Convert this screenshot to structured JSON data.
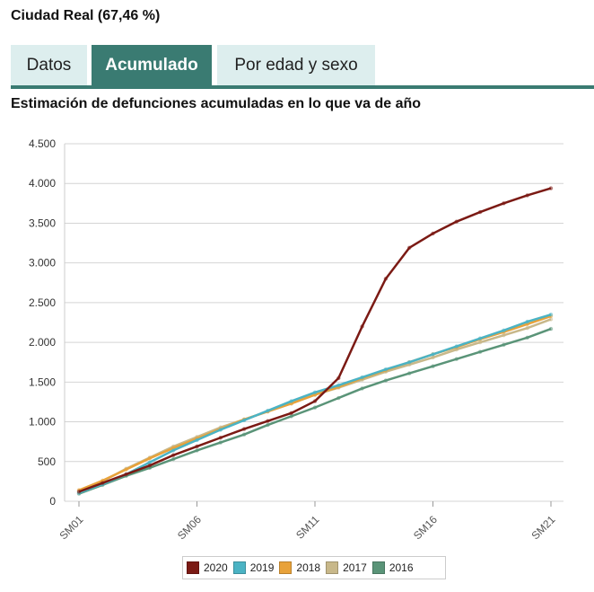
{
  "region": {
    "title": "Ciudad Real (67,46 %)"
  },
  "tabs": [
    {
      "label": "Datos",
      "active": false
    },
    {
      "label": "Acumulado",
      "active": true
    },
    {
      "label": "Por edad y sexo",
      "active": false
    }
  ],
  "colors": {
    "accent": "#3a7b72",
    "tab_bg": "#ddeeee"
  },
  "chart_data": {
    "type": "line",
    "title": "Estimación de defunciones acumuladas en lo que va de año",
    "xlabel": "",
    "ylabel": "",
    "x": [
      "SM01",
      "SM02",
      "SM03",
      "SM04",
      "SM05",
      "SM06",
      "SM07",
      "SM08",
      "SM09",
      "SM10",
      "SM11",
      "SM12",
      "SM13",
      "SM14",
      "SM15",
      "SM16",
      "SM17",
      "SM18",
      "SM19",
      "SM20",
      "SM21"
    ],
    "x_tick_labels": [
      "SM01",
      "SM06",
      "SM11",
      "SM16",
      "SM21"
    ],
    "ylim": [
      0,
      4500
    ],
    "y_ticks": [
      0,
      500,
      1000,
      1500,
      2000,
      2500,
      3000,
      3500,
      4000,
      4500
    ],
    "y_tick_labels": [
      "0",
      "500",
      "1.000",
      "1.500",
      "2.000",
      "2.500",
      "3.000",
      "3.500",
      "4.000",
      "4.500"
    ],
    "grid": true,
    "legend_position": "bottom",
    "series": [
      {
        "name": "2020",
        "color": "#7b1a14",
        "values": [
          120,
          230,
          340,
          450,
          580,
          690,
          800,
          910,
          1010,
          1110,
          1260,
          1550,
          2200,
          2800,
          3190,
          3370,
          3520,
          3640,
          3750,
          3850,
          3940
        ]
      },
      {
        "name": "2019",
        "color": "#4bb3c4",
        "values": [
          105,
          215,
          340,
          490,
          640,
          770,
          900,
          1020,
          1140,
          1260,
          1370,
          1460,
          1560,
          1660,
          1750,
          1850,
          1950,
          2050,
          2150,
          2260,
          2350
        ]
      },
      {
        "name": "2018",
        "color": "#e8a23a",
        "values": [
          140,
          260,
          400,
          540,
          670,
          790,
          910,
          1030,
          1130,
          1230,
          1340,
          1440,
          1550,
          1650,
          1750,
          1850,
          1940,
          2040,
          2130,
          2230,
          2330
        ]
      },
      {
        "name": "2017",
        "color": "#c8b88a",
        "values": [
          130,
          250,
          410,
          550,
          690,
          810,
          930,
          1030,
          1130,
          1230,
          1340,
          1430,
          1530,
          1630,
          1720,
          1810,
          1910,
          2000,
          2090,
          2180,
          2290
        ]
      },
      {
        "name": "2016",
        "color": "#5a9478",
        "values": [
          95,
          205,
          320,
          420,
          530,
          640,
          740,
          840,
          960,
          1070,
          1180,
          1300,
          1420,
          1520,
          1610,
          1700,
          1790,
          1880,
          1970,
          2060,
          2170
        ]
      }
    ]
  }
}
